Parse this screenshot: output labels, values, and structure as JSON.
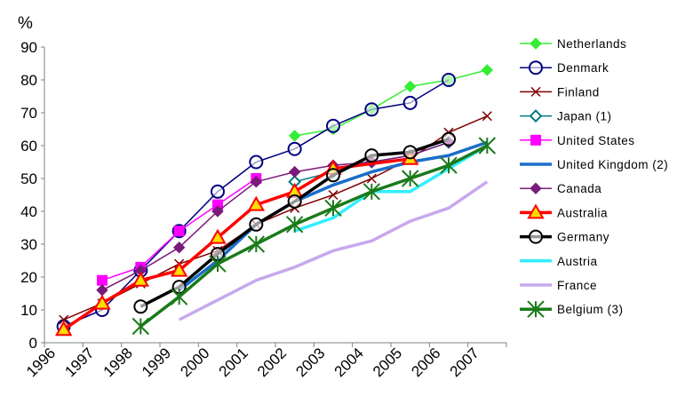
{
  "chart_data": {
    "type": "line",
    "title": "",
    "ylabel": "%",
    "xlabel": "",
    "ylim": [
      0,
      90
    ],
    "yticks": [
      0,
      10,
      20,
      30,
      40,
      50,
      60,
      70,
      80,
      90
    ],
    "categories": [
      "1996",
      "1997",
      "1998",
      "1999",
      "2000",
      "2001",
      "2002",
      "2003",
      "2004",
      "2005",
      "2006",
      "2007"
    ],
    "grid": false,
    "legend_position": "right",
    "series": [
      {
        "name": "Netherlands",
        "color": "#33ee33",
        "marker": "diamond",
        "values": [
          null,
          null,
          null,
          null,
          null,
          null,
          63,
          65,
          71,
          78,
          80,
          83
        ]
      },
      {
        "name": "Denmark",
        "color": "#000080",
        "marker": "circle-open",
        "values": [
          5,
          10,
          22,
          34,
          46,
          55,
          59,
          66,
          71,
          73,
          80,
          null
        ]
      },
      {
        "name": "Finland",
        "color": "#800000",
        "marker": "x",
        "values": [
          7,
          12,
          18,
          24,
          28,
          36,
          41,
          45,
          50,
          56,
          64,
          69
        ]
      },
      {
        "name": "Japan (1)",
        "color": "#007b7b",
        "marker": "diamond-open",
        "values": [
          null,
          null,
          null,
          null,
          null,
          null,
          49,
          52,
          55,
          57,
          61,
          null
        ]
      },
      {
        "name": "United States",
        "color": "#ff00ff",
        "marker": "square",
        "values": [
          null,
          19,
          23,
          34,
          42,
          50,
          null,
          null,
          null,
          null,
          null,
          null
        ]
      },
      {
        "name": "United Kingdom (2)",
        "color": "#1a6ec8",
        "marker": "none",
        "values": [
          null,
          null,
          null,
          16,
          25,
          36,
          43,
          48,
          52,
          55,
          57,
          61
        ]
      },
      {
        "name": "Canada",
        "color": "#7a1a7a",
        "marker": "diamond",
        "values": [
          null,
          16,
          22,
          29,
          40,
          49,
          52,
          54,
          55,
          57,
          61,
          null
        ]
      },
      {
        "name": "Australia",
        "color": "#ff0000",
        "marker": "triangle",
        "values": [
          4,
          12,
          19,
          22,
          32,
          42,
          46,
          53,
          null,
          56,
          null,
          null
        ]
      },
      {
        "name": "Germany",
        "color": "#000000",
        "marker": "circle-open",
        "values": [
          null,
          null,
          11,
          17,
          27,
          36,
          43,
          51,
          57,
          58,
          62,
          null
        ]
      },
      {
        "name": "Austria",
        "color": "#33eeff",
        "marker": "none",
        "values": [
          null,
          null,
          null,
          null,
          null,
          null,
          34,
          38,
          46,
          46,
          53,
          60
        ]
      },
      {
        "name": "France",
        "color": "#c8a8ee",
        "marker": "none",
        "values": [
          null,
          null,
          null,
          7,
          13,
          19,
          23,
          28,
          31,
          37,
          41,
          49
        ]
      },
      {
        "name": "Belgium (3)",
        "color": "#1a7a1a",
        "marker": "asterisk",
        "values": [
          null,
          null,
          5,
          14,
          24,
          30,
          36,
          41,
          46,
          50,
          54,
          60
        ]
      }
    ]
  }
}
